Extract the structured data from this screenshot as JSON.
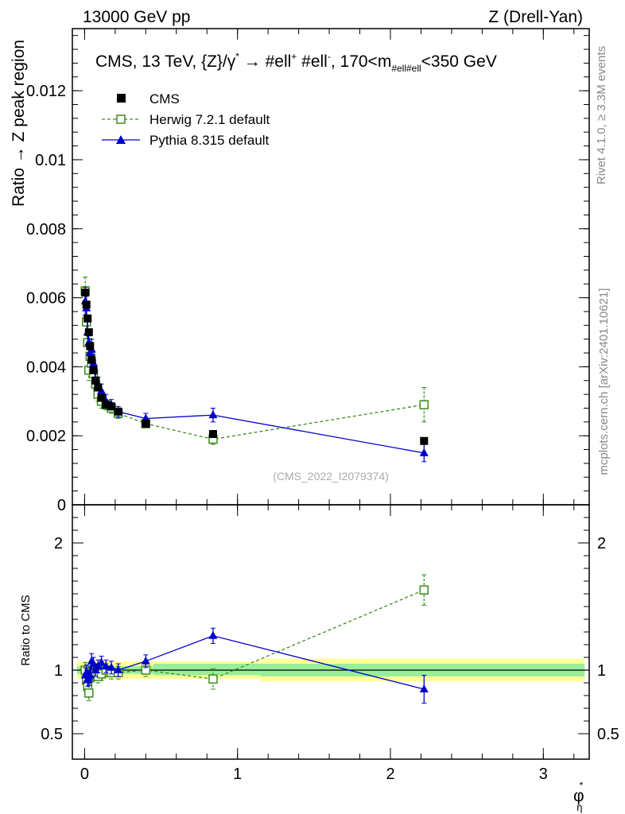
{
  "header": {
    "left": "13000 GeV pp",
    "right": "Z (Drell-Yan)"
  },
  "side_labels": {
    "rivet": "Rivet 4.1.0, ≥ 3.3M events",
    "mcplots": "mcplots.cern.ch [arXiv:2401.10621]"
  },
  "chart_data": {
    "type": "scatter",
    "title": {
      "main": "CMS, 13 TeV, {Z}/γ",
      "sup1": "*",
      "arrow": " →  #ell",
      "sup2": "+",
      "mid": " #ell",
      "sup3": "-",
      "range_a": ", 170<m",
      "sub": "#ell#ell",
      "range_b": "<350 GeV"
    },
    "watermark": "(CMS_2022_I2079374)",
    "xlabel": "φ",
    "xlabel_sup": "*",
    "xlabel_sub": "η",
    "ylabel": "Ratio → Z peak region",
    "ratio_ylabel": "Ratio to CMS",
    "xlim": [
      -0.08,
      3.3
    ],
    "ylim": [
      0,
      0.0138
    ],
    "ratio_ylim": [
      0.3,
      2.3
    ],
    "x_ticks": [
      0,
      1,
      2,
      3
    ],
    "y_ticks": [
      0,
      0.002,
      0.004,
      0.006,
      0.008,
      0.01,
      0.012
    ],
    "y_tick_labels": [
      "0",
      "0.002",
      "0.004",
      "0.006",
      "0.008",
      "0.01",
      "0.012"
    ],
    "ratio_ticks": [
      0.5,
      1,
      2
    ],
    "ratio_tick_labels": [
      "0.5",
      "1",
      "2"
    ],
    "x": [
      0.004,
      0.012,
      0.02,
      0.028,
      0.036,
      0.046,
      0.058,
      0.072,
      0.088,
      0.11,
      0.14,
      0.175,
      0.22,
      0.4,
      0.84,
      2.22
    ],
    "series": [
      {
        "name": "CMS",
        "style": "data",
        "color": "#000000",
        "values": [
          0.00615,
          0.0058,
          0.0054,
          0.005,
          0.0046,
          0.0042,
          0.0039,
          0.0036,
          0.0034,
          0.0031,
          0.0029,
          0.00285,
          0.0027,
          0.00235,
          0.00205,
          0.00185
        ],
        "ratio": [
          1,
          1,
          1,
          1,
          1,
          1,
          1,
          1,
          1,
          1,
          1,
          1,
          1,
          1,
          1,
          1
        ]
      },
      {
        "name": "Herwig 7.2.1 default",
        "style": "dashed-open-square",
        "color": "#3c8c1e",
        "values": [
          0.0062,
          0.0053,
          0.0047,
          0.0039,
          0.0043,
          0.0041,
          0.0038,
          0.0035,
          0.0032,
          0.003,
          0.0029,
          0.0028,
          0.00265,
          0.00235,
          0.0019,
          0.0029
        ],
        "errors": [
          0.0004,
          0.00035,
          0.0003,
          0.0003,
          0.0003,
          0.00025,
          0.00025,
          0.0002,
          0.0002,
          0.0002,
          0.00015,
          0.00015,
          0.00015,
          0.00012,
          0.00015,
          0.0005
        ],
        "ratio": [
          1.0,
          0.92,
          0.87,
          0.82,
          0.94,
          0.98,
          0.97,
          0.97,
          0.95,
          0.97,
          1.0,
          0.98,
          0.98,
          1.0,
          0.93,
          1.63
        ],
        "ratio_errors": [
          0.06,
          0.06,
          0.06,
          0.06,
          0.06,
          0.05,
          0.05,
          0.05,
          0.05,
          0.05,
          0.05,
          0.05,
          0.05,
          0.05,
          0.08,
          0.12
        ]
      },
      {
        "name": "Pythia 8.315 default",
        "style": "solid-filled-triangle",
        "color": "#0000cc",
        "values": [
          0.0059,
          0.0057,
          0.005,
          0.0047,
          0.0044,
          0.0045,
          0.0041,
          0.0036,
          0.0035,
          0.0033,
          0.003,
          0.0029,
          0.0027,
          0.0025,
          0.0026,
          0.0015
        ],
        "errors": [
          0.0004,
          0.0004,
          0.00035,
          0.0003,
          0.0003,
          0.0003,
          0.00025,
          0.00025,
          0.0002,
          0.0002,
          0.0002,
          0.00015,
          0.00015,
          0.00015,
          0.0002,
          0.00025
        ],
        "ratio": [
          0.96,
          0.98,
          0.93,
          0.94,
          0.96,
          1.07,
          1.05,
          1.0,
          1.03,
          1.06,
          1.03,
          1.02,
          1.0,
          1.07,
          1.27,
          0.85
        ],
        "ratio_errors": [
          0.06,
          0.06,
          0.06,
          0.06,
          0.06,
          0.06,
          0.05,
          0.05,
          0.05,
          0.05,
          0.05,
          0.05,
          0.05,
          0.05,
          0.06,
          0.11
        ]
      }
    ],
    "bands": {
      "inner_color": "#99ee99",
      "outer_color": "#ffff99",
      "segments": [
        {
          "x0": -0.05,
          "x1": 0.45,
          "inner": [
            0.97,
            1.03
          ],
          "outer": [
            0.93,
            1.07
          ]
        },
        {
          "x0": 0.45,
          "x1": 1.15,
          "inner": [
            0.96,
            1.05
          ],
          "outer": [
            0.93,
            1.07
          ]
        },
        {
          "x0": 1.15,
          "x1": 3.27,
          "inner": [
            0.95,
            1.05
          ],
          "outer": [
            0.91,
            1.09
          ]
        }
      ]
    },
    "legend": [
      "CMS",
      "Herwig 7.2.1 default",
      "Pythia 8.315 default"
    ],
    "legend_position": "top-left"
  }
}
